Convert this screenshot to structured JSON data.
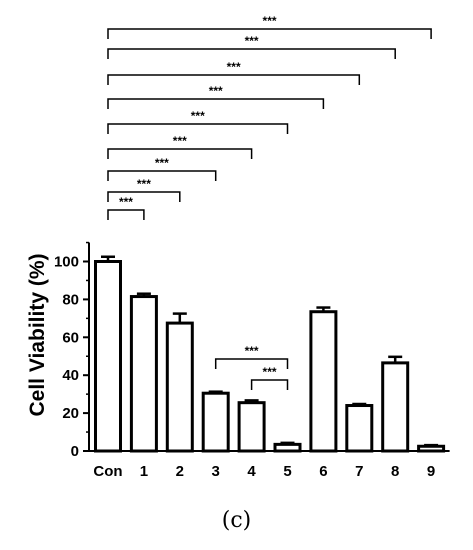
{
  "chart_data": {
    "type": "bar",
    "categories": [
      "Con",
      "1",
      "2",
      "3",
      "4",
      "5",
      "6",
      "7",
      "8",
      "9"
    ],
    "values": [
      100,
      81.5,
      67.5,
      30.5,
      25.5,
      3.5,
      73.5,
      24,
      46.5,
      2.5
    ],
    "errors": [
      2.5,
      1.5,
      5,
      0.8,
      1.2,
      0.8,
      2.2,
      0.8,
      3.2,
      0.6
    ],
    "ylabel": "Cell Viability (%)",
    "xlabel": "",
    "ylim": [
      0,
      110
    ],
    "yticks": [
      0,
      20,
      40,
      60,
      80,
      100
    ],
    "bar_fill": "#ffffff",
    "bar_stroke": "#000000",
    "significance": [
      {
        "from": "Con",
        "to": "9",
        "label": "***"
      },
      {
        "from": "Con",
        "to": "8",
        "label": "***"
      },
      {
        "from": "Con",
        "to": "7",
        "label": "***"
      },
      {
        "from": "Con",
        "to": "6",
        "label": "***"
      },
      {
        "from": "Con",
        "to": "5",
        "label": "***"
      },
      {
        "from": "Con",
        "to": "4",
        "label": "***"
      },
      {
        "from": "Con",
        "to": "3",
        "label": "***"
      },
      {
        "from": "Con",
        "to": "2",
        "label": "***"
      },
      {
        "from": "Con",
        "to": "1",
        "label": "***"
      },
      {
        "from": "3",
        "to": "5",
        "label": "***"
      },
      {
        "from": "4",
        "to": "5",
        "label": "***"
      }
    ]
  },
  "panel_label": "(c)"
}
